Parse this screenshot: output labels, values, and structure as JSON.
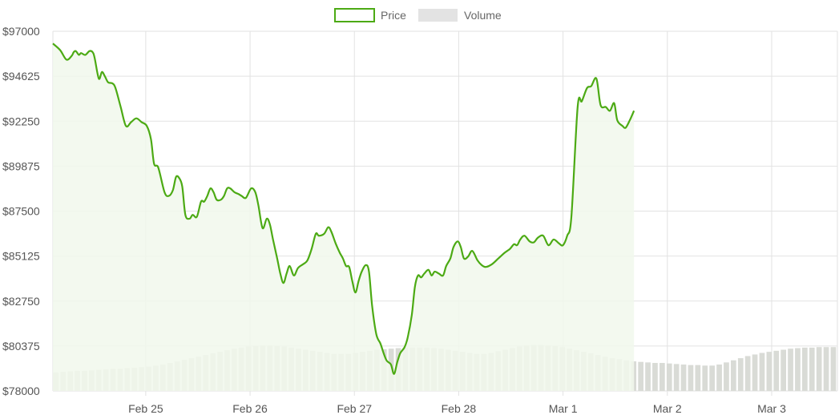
{
  "chart_data": {
    "type": "line",
    "legend": {
      "position": "top-center",
      "items": [
        {
          "label": "Price",
          "color": "#4caa14",
          "style": "outline"
        },
        {
          "label": "Volume",
          "color": "#e3e3e3",
          "style": "filled"
        }
      ]
    },
    "colors": {
      "price_line": "#4caa14",
      "price_fill": "#f1f8ec",
      "volume_bar": "#d9dbd6",
      "grid": "#e2e2e2",
      "axis_text": "#555555"
    },
    "grid": true,
    "y_ticks": [
      "$97000",
      "$94625",
      "$92250",
      "$89875",
      "$87500",
      "$85125",
      "$82750",
      "$80375",
      "$78000"
    ],
    "y_ticks_values": [
      97000,
      94625,
      92250,
      89875,
      87500,
      85125,
      82750,
      80375,
      78000
    ],
    "ylim": [
      78000,
      97000
    ],
    "x_ticks": [
      "Feb 25",
      "Feb 26",
      "Feb 27",
      "Feb 28",
      "Mar 1",
      "Mar 2",
      "Mar 3"
    ],
    "x_tick_days": [
      1,
      2,
      3,
      4,
      5,
      6,
      7
    ],
    "x_range_days": [
      0.11,
      7.63
    ],
    "series": [
      {
        "name": "Price",
        "points": [
          [
            0.11,
            96350
          ],
          [
            0.18,
            96000
          ],
          [
            0.24,
            95500
          ],
          [
            0.29,
            95700
          ],
          [
            0.31,
            95900
          ],
          [
            0.33,
            95950
          ],
          [
            0.36,
            95750
          ],
          [
            0.38,
            95850
          ],
          [
            0.42,
            95750
          ],
          [
            0.46,
            95950
          ],
          [
            0.49,
            95900
          ],
          [
            0.51,
            95600
          ],
          [
            0.55,
            94500
          ],
          [
            0.58,
            94850
          ],
          [
            0.61,
            94600
          ],
          [
            0.64,
            94300
          ],
          [
            0.68,
            94250
          ],
          [
            0.71,
            94000
          ],
          [
            0.76,
            93000
          ],
          [
            0.81,
            92000
          ],
          [
            0.86,
            92200
          ],
          [
            0.91,
            92400
          ],
          [
            0.96,
            92200
          ],
          [
            1.01,
            92000
          ],
          [
            1.05,
            91300
          ],
          [
            1.08,
            90000
          ],
          [
            1.12,
            89800
          ],
          [
            1.18,
            88500
          ],
          [
            1.22,
            88300
          ],
          [
            1.26,
            88600
          ],
          [
            1.29,
            89300
          ],
          [
            1.32,
            89250
          ],
          [
            1.35,
            88800
          ],
          [
            1.38,
            87300
          ],
          [
            1.42,
            87100
          ],
          [
            1.45,
            87300
          ],
          [
            1.49,
            87200
          ],
          [
            1.53,
            88000
          ],
          [
            1.56,
            88000
          ],
          [
            1.59,
            88300
          ],
          [
            1.62,
            88700
          ],
          [
            1.65,
            88500
          ],
          [
            1.68,
            88100
          ],
          [
            1.72,
            88100
          ],
          [
            1.75,
            88300
          ],
          [
            1.78,
            88700
          ],
          [
            1.81,
            88700
          ],
          [
            1.85,
            88500
          ],
          [
            1.89,
            88400
          ],
          [
            1.92,
            88300
          ],
          [
            1.96,
            88200
          ],
          [
            2.01,
            88700
          ],
          [
            2.05,
            88500
          ],
          [
            2.08,
            87800
          ],
          [
            2.12,
            86600
          ],
          [
            2.16,
            87100
          ],
          [
            2.19,
            86800
          ],
          [
            2.22,
            86000
          ],
          [
            2.26,
            85000
          ],
          [
            2.29,
            84200
          ],
          [
            2.32,
            83700
          ],
          [
            2.35,
            84200
          ],
          [
            2.38,
            84600
          ],
          [
            2.42,
            84100
          ],
          [
            2.46,
            84500
          ],
          [
            2.51,
            84700
          ],
          [
            2.55,
            84900
          ],
          [
            2.59,
            85500
          ],
          [
            2.63,
            86300
          ],
          [
            2.66,
            86200
          ],
          [
            2.71,
            86300
          ],
          [
            2.75,
            86650
          ],
          [
            2.78,
            86400
          ],
          [
            2.82,
            85800
          ],
          [
            2.86,
            85300
          ],
          [
            2.89,
            85000
          ],
          [
            2.92,
            84600
          ],
          [
            2.95,
            84550
          ],
          [
            2.98,
            83800
          ],
          [
            3.01,
            83200
          ],
          [
            3.04,
            83800
          ],
          [
            3.07,
            84300
          ],
          [
            3.11,
            84650
          ],
          [
            3.14,
            84300
          ],
          [
            3.17,
            82500
          ],
          [
            3.21,
            81000
          ],
          [
            3.25,
            80500
          ],
          [
            3.28,
            80000
          ],
          [
            3.31,
            79600
          ],
          [
            3.35,
            79400
          ],
          [
            3.38,
            78900
          ],
          [
            3.41,
            79500
          ],
          [
            3.44,
            80000
          ],
          [
            3.48,
            80300
          ],
          [
            3.51,
            80800
          ],
          [
            3.55,
            82000
          ],
          [
            3.58,
            83500
          ],
          [
            3.61,
            84100
          ],
          [
            3.64,
            84000
          ],
          [
            3.67,
            84200
          ],
          [
            3.71,
            84400
          ],
          [
            3.74,
            84100
          ],
          [
            3.77,
            84300
          ],
          [
            3.81,
            84200
          ],
          [
            3.85,
            84100
          ],
          [
            3.88,
            84600
          ],
          [
            3.92,
            85000
          ],
          [
            3.95,
            85600
          ],
          [
            3.99,
            85900
          ],
          [
            4.02,
            85600
          ],
          [
            4.05,
            85000
          ],
          [
            4.09,
            85100
          ],
          [
            4.13,
            85400
          ],
          [
            4.18,
            84900
          ],
          [
            4.22,
            84650
          ],
          [
            4.26,
            84550
          ],
          [
            4.32,
            84700
          ],
          [
            4.38,
            85000
          ],
          [
            4.44,
            85300
          ],
          [
            4.49,
            85500
          ],
          [
            4.53,
            85750
          ],
          [
            4.56,
            85700
          ],
          [
            4.59,
            86000
          ],
          [
            4.63,
            86200
          ],
          [
            4.68,
            85900
          ],
          [
            4.72,
            85850
          ],
          [
            4.76,
            86100
          ],
          [
            4.81,
            86200
          ],
          [
            4.86,
            85700
          ],
          [
            4.91,
            86000
          ],
          [
            4.96,
            85800
          ],
          [
            5.0,
            85700
          ],
          [
            5.04,
            86200
          ],
          [
            5.08,
            87200
          ],
          [
            5.14,
            93000
          ],
          [
            5.18,
            93300
          ],
          [
            5.23,
            94000
          ],
          [
            5.27,
            94100
          ],
          [
            5.32,
            94500
          ],
          [
            5.36,
            93100
          ],
          [
            5.41,
            93000
          ],
          [
            5.45,
            92800
          ],
          [
            5.49,
            93200
          ],
          [
            5.52,
            92300
          ],
          [
            5.57,
            92000
          ],
          [
            5.6,
            91900
          ],
          [
            5.64,
            92300
          ],
          [
            5.68,
            92800
          ]
        ]
      },
      {
        "name": "Volume",
        "values": [
          35,
          36,
          37,
          38,
          38,
          39,
          40,
          41,
          42,
          42,
          43,
          44,
          45,
          46,
          48,
          50,
          53,
          56,
          59,
          62,
          65,
          68,
          71,
          74,
          77,
          80,
          82,
          84,
          85,
          86,
          86,
          85,
          84,
          82,
          80,
          78,
          76,
          74,
          72,
          70,
          70,
          70,
          72,
          74,
          76,
          78,
          79,
          80,
          81,
          82,
          82,
          82,
          82,
          81,
          80,
          78,
          76,
          74,
          72,
          70,
          70,
          72,
          75,
          78,
          81,
          84,
          86,
          87,
          87,
          86,
          85,
          83,
          80,
          77,
          74,
          71,
          68,
          65,
          62,
          60,
          58,
          56,
          55,
          54,
          53,
          53,
          52,
          51,
          50,
          49,
          49,
          48,
          48,
          50,
          54,
          58,
          62,
          66,
          69,
          72,
          74,
          76,
          78,
          80,
          81,
          82,
          82,
          83,
          83,
          83
        ]
      }
    ]
  }
}
